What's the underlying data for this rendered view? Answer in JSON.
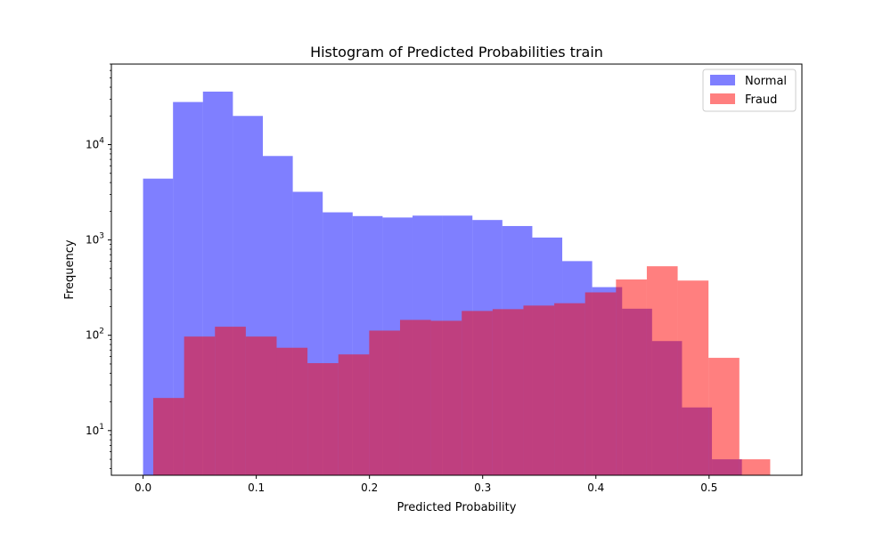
{
  "colors": {
    "normal": "#0000ff",
    "fraud": "#ff0000",
    "bar_opacity": 0.5
  },
  "chart_data": {
    "type": "bar",
    "title": "Histogram of Predicted Probabilities train",
    "xlabel": "Predicted Probability",
    "ylabel": "Frequency",
    "yscale": "log",
    "xlim": [
      -0.028,
      0.582
    ],
    "ylim": [
      3.4,
      70000
    ],
    "x_ticks": [
      {
        "value": 0.0,
        "label": "0.0"
      },
      {
        "value": 0.1,
        "label": "0.1"
      },
      {
        "value": 0.2,
        "label": "0.2"
      },
      {
        "value": 0.3,
        "label": "0.3"
      },
      {
        "value": 0.4,
        "label": "0.4"
      },
      {
        "value": 0.5,
        "label": "0.5"
      }
    ],
    "y_ticks": [
      {
        "value": 10,
        "base": "10",
        "exp": "1"
      },
      {
        "value": 100,
        "base": "10",
        "exp": "2"
      },
      {
        "value": 1000,
        "base": "10",
        "exp": "3"
      },
      {
        "value": 10000,
        "base": "10",
        "exp": "4"
      }
    ],
    "grid": false,
    "legend_position": "top-right",
    "series": [
      {
        "name": "Normal",
        "color": "#0000ff",
        "bin_edges": [
          0.0,
          0.02645,
          0.0529,
          0.07935,
          0.1058,
          0.13225,
          0.1587,
          0.18515,
          0.2116,
          0.23805,
          0.2645,
          0.29095,
          0.3174,
          0.34385,
          0.3703,
          0.39675,
          0.4232,
          0.44965,
          0.4761,
          0.50255,
          0.529
        ],
        "counts": [
          4400,
          28000,
          36000,
          20000,
          7600,
          3200,
          1950,
          1780,
          1720,
          1800,
          1800,
          1620,
          1400,
          1060,
          600,
          320,
          190,
          87,
          17.5,
          5
        ]
      },
      {
        "name": "Fraud",
        "color": "#ff0000",
        "bin_edges": [
          0.009,
          0.03625,
          0.0635,
          0.09075,
          0.118,
          0.14525,
          0.1725,
          0.19975,
          0.227,
          0.25425,
          0.2815,
          0.30875,
          0.336,
          0.36325,
          0.3905,
          0.41775,
          0.445,
          0.47225,
          0.4995,
          0.52675,
          0.554
        ],
        "counts": [
          22,
          97,
          123,
          97,
          74,
          51,
          63,
          112,
          145,
          142,
          180,
          188,
          205,
          217,
          282,
          385,
          530,
          375,
          58,
          5
        ]
      }
    ]
  }
}
